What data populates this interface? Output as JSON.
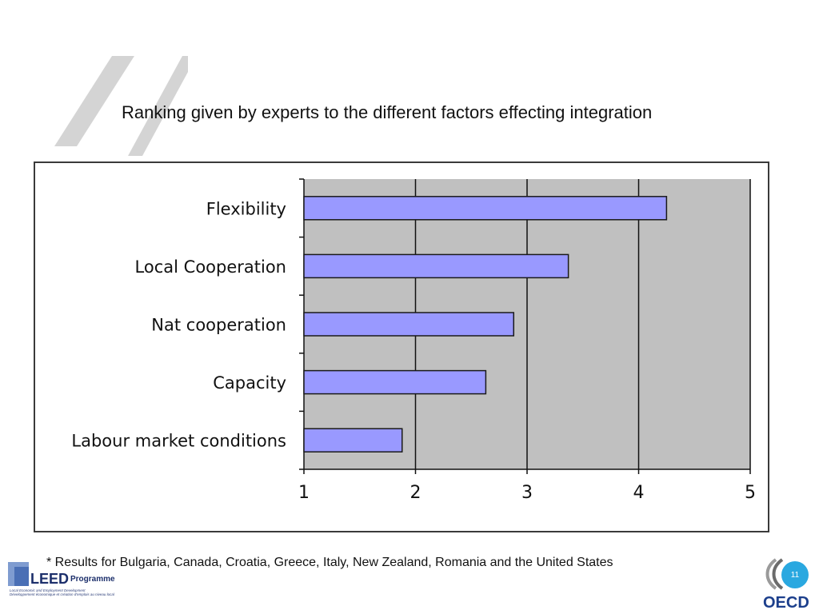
{
  "slide": {
    "title": "Ranking given by experts to the different factors effecting integration",
    "footnote": "* Results for  Bulgaria, Canada, Croatia, Greece, Italy, New Zealand, Romania  and the United States",
    "page_number": "11"
  },
  "logos": {
    "leed_main": "LEED",
    "leed_programme": "Programme",
    "leed_sub_1": "Local Economic and Employment Development",
    "leed_sub_2": "Développement économique et création d'emplois au niveau local",
    "oecd": "OECD"
  },
  "colors": {
    "bar_fill": "#9999ff",
    "bar_stroke": "#1a1a1a",
    "plot_bg": "#c0c0c0",
    "gridline": "#111111",
    "quote_grey": "#d4d4d4",
    "oecd_blue": "#1c3f8c",
    "badge_blue": "#2aa8e0"
  },
  "icons": {
    "quote": "double-quote-icon",
    "oecd": "oecd-logo-icon",
    "leed": "leed-logo-icon"
  },
  "chart_data": {
    "type": "bar",
    "orientation": "horizontal",
    "categories": [
      "Flexibility",
      "Local Cooperation",
      "Nat cooperation",
      "Capacity",
      "Labour market conditions"
    ],
    "values": [
      4.25,
      3.37,
      2.88,
      2.63,
      1.88
    ],
    "xlim": [
      1,
      5
    ],
    "xticks": [
      "1",
      "2",
      "3",
      "4",
      "5"
    ],
    "grid": "vertical",
    "legend": "none"
  }
}
